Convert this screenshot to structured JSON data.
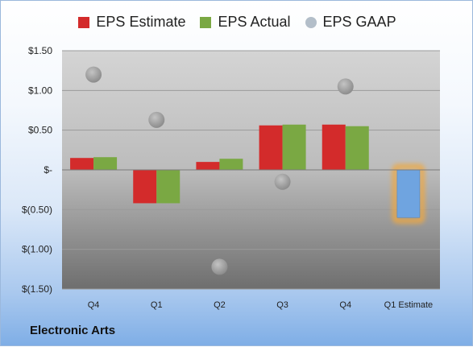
{
  "chart_data": {
    "type": "bar",
    "categories": [
      "Q4",
      "Q1",
      "Q2",
      "Q3",
      "Q4",
      "Q1 Estimate"
    ],
    "series": [
      {
        "name": "EPS Estimate",
        "kind": "bar",
        "color": "#d32b2b",
        "values": [
          0.15,
          -0.42,
          0.1,
          0.56,
          0.57,
          -0.6
        ]
      },
      {
        "name": "EPS Actual",
        "kind": "bar",
        "color": "#7aa843",
        "values": [
          0.16,
          -0.42,
          0.14,
          0.57,
          0.55,
          null
        ]
      },
      {
        "name": "EPS GAAP",
        "kind": "scatter",
        "color": "#9a9a9a",
        "values": [
          1.2,
          0.63,
          -1.22,
          -0.15,
          1.05,
          null
        ]
      }
    ],
    "estimate_bar": {
      "category": "Q1 Estimate",
      "value": -0.6,
      "color": "#6fa4e0",
      "glow": "#f0a840"
    },
    "ylim": [
      -1.5,
      1.5
    ],
    "yticks": [
      1.5,
      1.0,
      0.5,
      0,
      -0.5,
      -1.0,
      -1.5
    ],
    "ytick_labels": [
      "$1.50",
      "$1.00",
      "$0.50",
      "$-",
      "$(0.50)",
      "$(1.00)",
      "$(1.50)"
    ],
    "grid": true,
    "legend_position": "top-center"
  },
  "company_label": "Electronic Arts"
}
